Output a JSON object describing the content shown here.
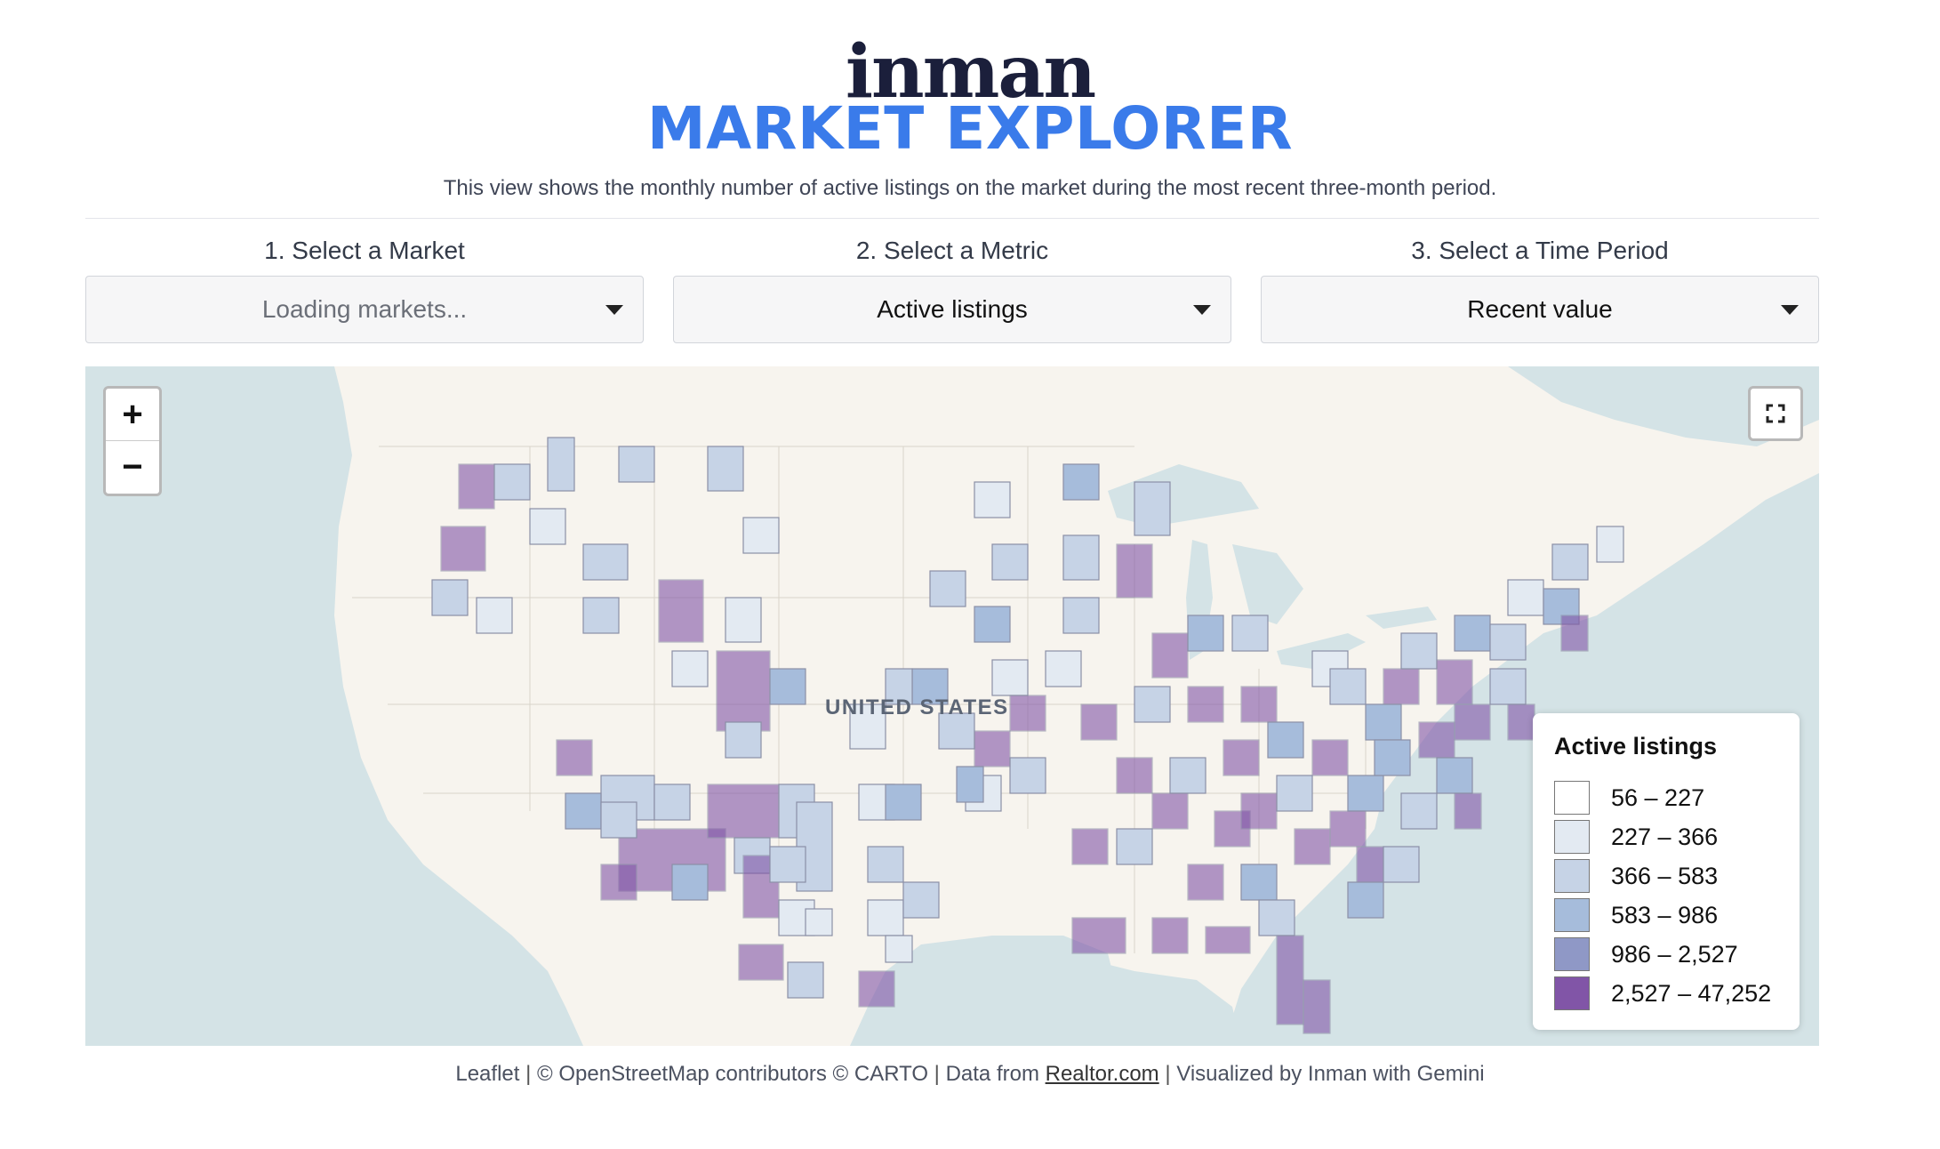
{
  "header": {
    "logo": "inman",
    "title": "MARKET EXPLORER",
    "subtitle": "This view shows the monthly number of active listings on the market during the most recent three-month period."
  },
  "selectors": [
    {
      "label": "1. Select a Market",
      "value": "Loading markets..."
    },
    {
      "label": "2. Select a Metric",
      "value": "Active listings"
    },
    {
      "label": "3. Select a Time Period",
      "value": "Recent value"
    }
  ],
  "map": {
    "country_label": "UNITED STATES",
    "zoom_in": "+",
    "zoom_out": "−",
    "fullscreen_icon": "expand-icon",
    "colors": {
      "water": "#d4e3e6",
      "land": "#f7f4ee"
    }
  },
  "legend": {
    "title": "Active listings",
    "items": [
      {
        "label": "56 – 227",
        "color": "#ffffff"
      },
      {
        "label": "227 – 366",
        "color": "#e3eaf2"
      },
      {
        "label": "366 – 583",
        "color": "#c6d3e6"
      },
      {
        "label": "583 – 986",
        "color": "#a6bcdb"
      },
      {
        "label": "986 – 2,527",
        "color": "#8f98c6"
      },
      {
        "label": "2,527 – 47,252",
        "color": "#8155a7"
      }
    ]
  },
  "footer": {
    "leaflet": "Leaflet",
    "attribution": "© OpenStreetMap contributors © CARTO",
    "data_prefix": "Data from ",
    "data_link": "Realtor.com",
    "credit": "Visualized by Inman with Gemini",
    "separator": "|"
  }
}
